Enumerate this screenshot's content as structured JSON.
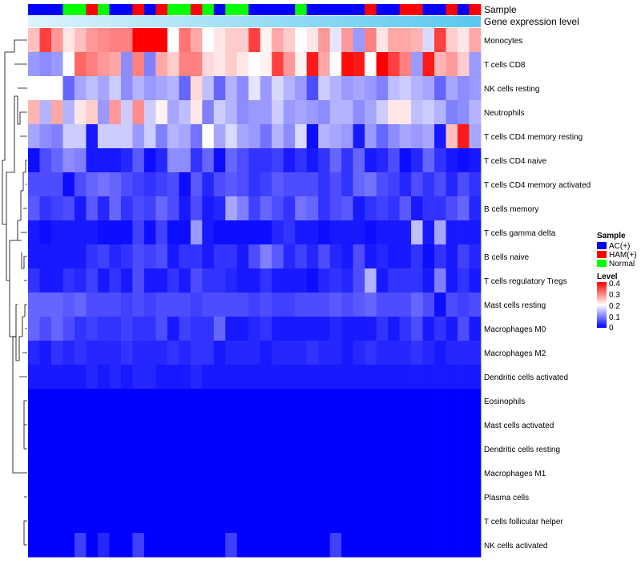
{
  "chart_data": {
    "type": "heatmap",
    "title": "",
    "annotation_labels": [
      "Sample",
      "Gene expression level"
    ],
    "rows": [
      "Monocytes",
      "T cells CD8",
      "NK cells resting",
      "Neutrophils",
      "T cells CD4 memory resting",
      "T cells CD4 naive",
      "T cells CD4 memory activated",
      "B cells memory",
      "T cells gamma delta",
      "B cells naive",
      "T cells regulatory  Tregs",
      "Mast cells resting",
      "Macrophages M0",
      "Macrophages M2",
      "Dendritic cells activated",
      "Eosinophils",
      "Mast cells activated",
      "Dendritic cells resting",
      "Macrophages M1",
      "Plasma cells",
      "T cells follicular helper",
      "NK cells activated"
    ],
    "n_columns": 39,
    "sample_groups": [
      "AC",
      "AC",
      "AC",
      "Normal",
      "Normal",
      "HAM",
      "Normal",
      "AC",
      "AC",
      "HAM",
      "AC",
      "HAM",
      "Normal",
      "Normal",
      "HAM",
      "Normal",
      "AC",
      "Normal",
      "Normal",
      "AC",
      "AC",
      "AC",
      "AC",
      "Normal",
      "AC",
      "AC",
      "AC",
      "AC",
      "AC",
      "HAM",
      "AC",
      "AC",
      "HAM",
      "HAM",
      "AC",
      "AC",
      "HAM",
      "AC",
      "HAM"
    ],
    "gene_expression_scale": {
      "low": "#ddf3fb",
      "high": "#5ac8f0"
    },
    "values": [
      [
        0.25,
        0.35,
        0.28,
        0.22,
        0.25,
        0.28,
        0.29,
        0.3,
        0.3,
        0.4,
        0.4,
        0.4,
        0.2,
        0.31,
        0.27,
        0.2,
        0.22,
        0.24,
        0.24,
        0.35,
        0.21,
        0.27,
        0.24,
        0.2,
        0.22,
        0.28,
        0.18,
        0.28,
        0.12,
        0.3,
        0.22,
        0.27,
        0.27,
        0.26,
        0.17,
        0.35,
        0.24,
        0.22,
        0.27
      ],
      [
        0.12,
        0.11,
        0.12,
        0.2,
        0.32,
        0.3,
        0.28,
        0.27,
        0.11,
        0.3,
        0.1,
        0.27,
        0.24,
        0.3,
        0.3,
        0.23,
        0.22,
        0.24,
        0.22,
        0.2,
        0.21,
        0.35,
        0.28,
        0.21,
        0.38,
        0.27,
        0.2,
        0.39,
        0.38,
        0.2,
        0.4,
        0.35,
        0.3,
        0.12,
        0.38,
        0.26,
        0.28,
        0.24,
        0.12
      ],
      [
        0.2,
        0.2,
        0.2,
        0.08,
        0.13,
        0.15,
        0.13,
        0.16,
        0.11,
        0.14,
        0.12,
        0.13,
        0.14,
        0.08,
        0.23,
        0.15,
        0.08,
        0.14,
        0.11,
        0.18,
        0.12,
        0.17,
        0.14,
        0.12,
        0.06,
        0.16,
        0.14,
        0.12,
        0.13,
        0.12,
        0.1,
        0.15,
        0.16,
        0.14,
        0.13,
        0.08,
        0.13,
        0.11,
        0.12
      ],
      [
        0.26,
        0.14,
        0.27,
        0.14,
        0.22,
        0.24,
        0.12,
        0.28,
        0.16,
        0.29,
        0.16,
        0.21,
        0.13,
        0.15,
        0.22,
        0.1,
        0.16,
        0.14,
        0.11,
        0.12,
        0.12,
        0.16,
        0.12,
        0.13,
        0.12,
        0.11,
        0.14,
        0.14,
        0.11,
        0.13,
        0.16,
        0.22,
        0.22,
        0.15,
        0.16,
        0.14,
        0.1,
        0.11,
        0.14
      ],
      [
        0.13,
        0.11,
        0.1,
        0.16,
        0.16,
        0.02,
        0.16,
        0.16,
        0.16,
        0.12,
        0.16,
        0.1,
        0.14,
        0.13,
        0.09,
        0.2,
        0.13,
        0.17,
        0.13,
        0.12,
        0.09,
        0.14,
        0.11,
        0.17,
        0.01,
        0.14,
        0.13,
        0.12,
        0.02,
        0.12,
        0.08,
        0.11,
        0.13,
        0.12,
        0.13,
        0.02,
        0.25,
        0.38,
        0.13
      ],
      [
        0.01,
        0.06,
        0.08,
        0.11,
        0.1,
        0.02,
        0.02,
        0.02,
        0.03,
        0.07,
        0.01,
        0.03,
        0.11,
        0.11,
        0.04,
        0.08,
        0.01,
        0.08,
        0.06,
        0.04,
        0.04,
        0.05,
        0.02,
        0.04,
        0.02,
        0.04,
        0.08,
        0.04,
        0.08,
        0.02,
        0.03,
        0.06,
        0.01,
        0.03,
        0.08,
        0.04,
        0.02,
        0.01,
        0.02
      ],
      [
        0.06,
        0.06,
        0.06,
        0.01,
        0.06,
        0.08,
        0.09,
        0.08,
        0.06,
        0.05,
        0.04,
        0.05,
        0.06,
        0.01,
        0.07,
        0.03,
        0.06,
        0.07,
        0.06,
        0.04,
        0.05,
        0.07,
        0.06,
        0.06,
        0.06,
        0.04,
        0.06,
        0.04,
        0.08,
        0.09,
        0.06,
        0.05,
        0.03,
        0.06,
        0.04,
        0.06,
        0.03,
        0.06,
        0.04
      ],
      [
        0.07,
        0.04,
        0.05,
        0.06,
        0.02,
        0.07,
        0.03,
        0.08,
        0.04,
        0.06,
        0.05,
        0.08,
        0.06,
        0.02,
        0.06,
        0.02,
        0.03,
        0.13,
        0.1,
        0.05,
        0.08,
        0.06,
        0.04,
        0.09,
        0.08,
        0.04,
        0.06,
        0.07,
        0.02,
        0.04,
        0.05,
        0.04,
        0.07,
        0.02,
        0.04,
        0.04,
        0.06,
        0.08,
        0.03
      ],
      [
        0.02,
        0.01,
        0.02,
        0.02,
        0.02,
        0.02,
        0.01,
        0.01,
        0.01,
        0.05,
        0.01,
        0.05,
        0.01,
        0.01,
        0.12,
        0.02,
        0.01,
        0.01,
        0.01,
        0.01,
        0.01,
        0.03,
        0.04,
        0.02,
        0.02,
        0.01,
        0.02,
        0.02,
        0.02,
        0.01,
        0.02,
        0.02,
        0.02,
        0.15,
        0.02,
        0.13,
        0.02,
        0.02,
        0.02
      ],
      [
        0.02,
        0.02,
        0.02,
        0.02,
        0.02,
        0.04,
        0.05,
        0.03,
        0.04,
        0.06,
        0.05,
        0.06,
        0.02,
        0.04,
        0.04,
        0.02,
        0.04,
        0.04,
        0.02,
        0.06,
        0.1,
        0.07,
        0.03,
        0.05,
        0.03,
        0.06,
        0.03,
        0.02,
        0.06,
        0.02,
        0.03,
        0.02,
        0.02,
        0.04,
        0.01,
        0.04,
        0.02,
        0.05,
        0.03
      ],
      [
        0.04,
        0.02,
        0.02,
        0.04,
        0.03,
        0.05,
        0.02,
        0.04,
        0.02,
        0.06,
        0.02,
        0.02,
        0.04,
        0.02,
        0.06,
        0.04,
        0.04,
        0.03,
        0.02,
        0.02,
        0.04,
        0.02,
        0.02,
        0.02,
        0.01,
        0.03,
        0.04,
        0.03,
        0.06,
        0.14,
        0.02,
        0.04,
        0.04,
        0.04,
        0.02,
        0.1,
        0.02,
        0.04,
        0.02
      ],
      [
        0.08,
        0.08,
        0.08,
        0.07,
        0.08,
        0.06,
        0.06,
        0.06,
        0.05,
        0.06,
        0.05,
        0.06,
        0.06,
        0.06,
        0.05,
        0.06,
        0.06,
        0.06,
        0.06,
        0.05,
        0.06,
        0.05,
        0.05,
        0.06,
        0.06,
        0.06,
        0.07,
        0.06,
        0.07,
        0.08,
        0.06,
        0.06,
        0.06,
        0.08,
        0.06,
        0.01,
        0.06,
        0.05,
        0.06
      ],
      [
        0.08,
        0.06,
        0.08,
        0.06,
        0.04,
        0.05,
        0.04,
        0.04,
        0.05,
        0.04,
        0.04,
        0.06,
        0.02,
        0.05,
        0.04,
        0.04,
        0.08,
        0.02,
        0.02,
        0.03,
        0.04,
        0.02,
        0.02,
        0.02,
        0.02,
        0.02,
        0.03,
        0.02,
        0.02,
        0.02,
        0.04,
        0.02,
        0.04,
        0.06,
        0.02,
        0.04,
        0.02,
        0.06,
        0.02
      ],
      [
        0.03,
        0.02,
        0.04,
        0.03,
        0.04,
        0.03,
        0.03,
        0.03,
        0.04,
        0.03,
        0.03,
        0.03,
        0.04,
        0.03,
        0.04,
        0.04,
        0.02,
        0.03,
        0.03,
        0.03,
        0.02,
        0.03,
        0.03,
        0.03,
        0.04,
        0.03,
        0.03,
        0.02,
        0.03,
        0.04,
        0.03,
        0.03,
        0.03,
        0.04,
        0.03,
        0.02,
        0.03,
        0.03,
        0.03
      ],
      [
        0.02,
        0.02,
        0.02,
        0.02,
        0.02,
        0.03,
        0.02,
        0.03,
        0.02,
        0.03,
        0.03,
        0.02,
        0.02,
        0.02,
        0.03,
        0.02,
        0.02,
        0.02,
        0.02,
        0.02,
        0.02,
        0.02,
        0.02,
        0.02,
        0.02,
        0.02,
        0.02,
        0.02,
        0.02,
        0.02,
        0.02,
        0.02,
        0.02,
        0.02,
        0.02,
        0.02,
        0.02,
        0.02,
        0.02
      ],
      [
        0,
        0,
        0,
        0,
        0,
        0,
        0,
        0,
        0,
        0,
        0,
        0,
        0,
        0,
        0,
        0,
        0,
        0,
        0,
        0,
        0,
        0,
        0,
        0,
        0,
        0,
        0,
        0,
        0,
        0,
        0,
        0,
        0,
        0,
        0,
        0,
        0,
        0,
        0
      ],
      [
        0,
        0,
        0,
        0,
        0,
        0,
        0,
        0,
        0,
        0,
        0,
        0,
        0,
        0,
        0,
        0,
        0,
        0,
        0,
        0,
        0,
        0,
        0,
        0,
        0,
        0,
        0,
        0,
        0,
        0,
        0,
        0,
        0,
        0,
        0,
        0,
        0,
        0,
        0
      ],
      [
        0,
        0,
        0,
        0,
        0,
        0,
        0,
        0,
        0,
        0,
        0,
        0,
        0,
        0,
        0,
        0,
        0,
        0,
        0,
        0,
        0,
        0,
        0,
        0,
        0,
        0,
        0,
        0,
        0,
        0,
        0,
        0,
        0,
        0,
        0,
        0,
        0,
        0,
        0
      ],
      [
        0,
        0,
        0,
        0,
        0,
        0,
        0,
        0,
        0,
        0,
        0,
        0,
        0,
        0,
        0,
        0,
        0,
        0,
        0,
        0,
        0,
        0,
        0,
        0,
        0,
        0,
        0,
        0,
        0,
        0,
        0,
        0,
        0,
        0,
        0,
        0,
        0,
        0,
        0
      ],
      [
        0,
        0,
        0,
        0,
        0,
        0,
        0,
        0,
        0,
        0,
        0,
        0,
        0,
        0,
        0,
        0,
        0,
        0,
        0,
        0,
        0,
        0,
        0,
        0,
        0,
        0,
        0,
        0,
        0,
        0,
        0,
        0,
        0,
        0,
        0,
        0,
        0,
        0,
        0
      ],
      [
        0,
        0,
        0,
        0,
        0,
        0,
        0,
        0,
        0,
        0,
        0,
        0,
        0,
        0,
        0,
        0,
        0,
        0,
        0,
        0,
        0,
        0,
        0,
        0,
        0,
        0,
        0,
        0,
        0,
        0,
        0,
        0,
        0,
        0,
        0,
        0,
        0,
        0,
        0
      ],
      [
        0,
        0,
        0,
        0,
        0.05,
        0,
        0.03,
        0,
        0,
        0.05,
        0,
        0,
        0,
        0,
        0,
        0,
        0,
        0.05,
        0,
        0,
        0,
        0,
        0,
        0,
        0,
        0,
        0.05,
        0,
        0,
        0,
        0,
        0,
        0,
        0,
        0,
        0,
        0,
        0,
        0
      ]
    ],
    "color_scale": {
      "min": 0,
      "max": 0.4,
      "low": "#0000ff",
      "mid": "#ffffff",
      "high": "#ff0000"
    },
    "legend": {
      "sample_title": "Sample",
      "sample_entries": [
        {
          "key": "AC",
          "label": "AC(+)",
          "color": "#0000ff"
        },
        {
          "key": "HAM",
          "label": "HAM(+)",
          "color": "#ff0000"
        },
        {
          "key": "Normal",
          "label": "Normal",
          "color": "#00ff00"
        }
      ],
      "level_title": "Level",
      "level_ticks": [
        "0.4",
        "0.3",
        "0.2",
        "0.1",
        "0"
      ],
      "position": "right"
    },
    "dendrogram": "rows"
  }
}
